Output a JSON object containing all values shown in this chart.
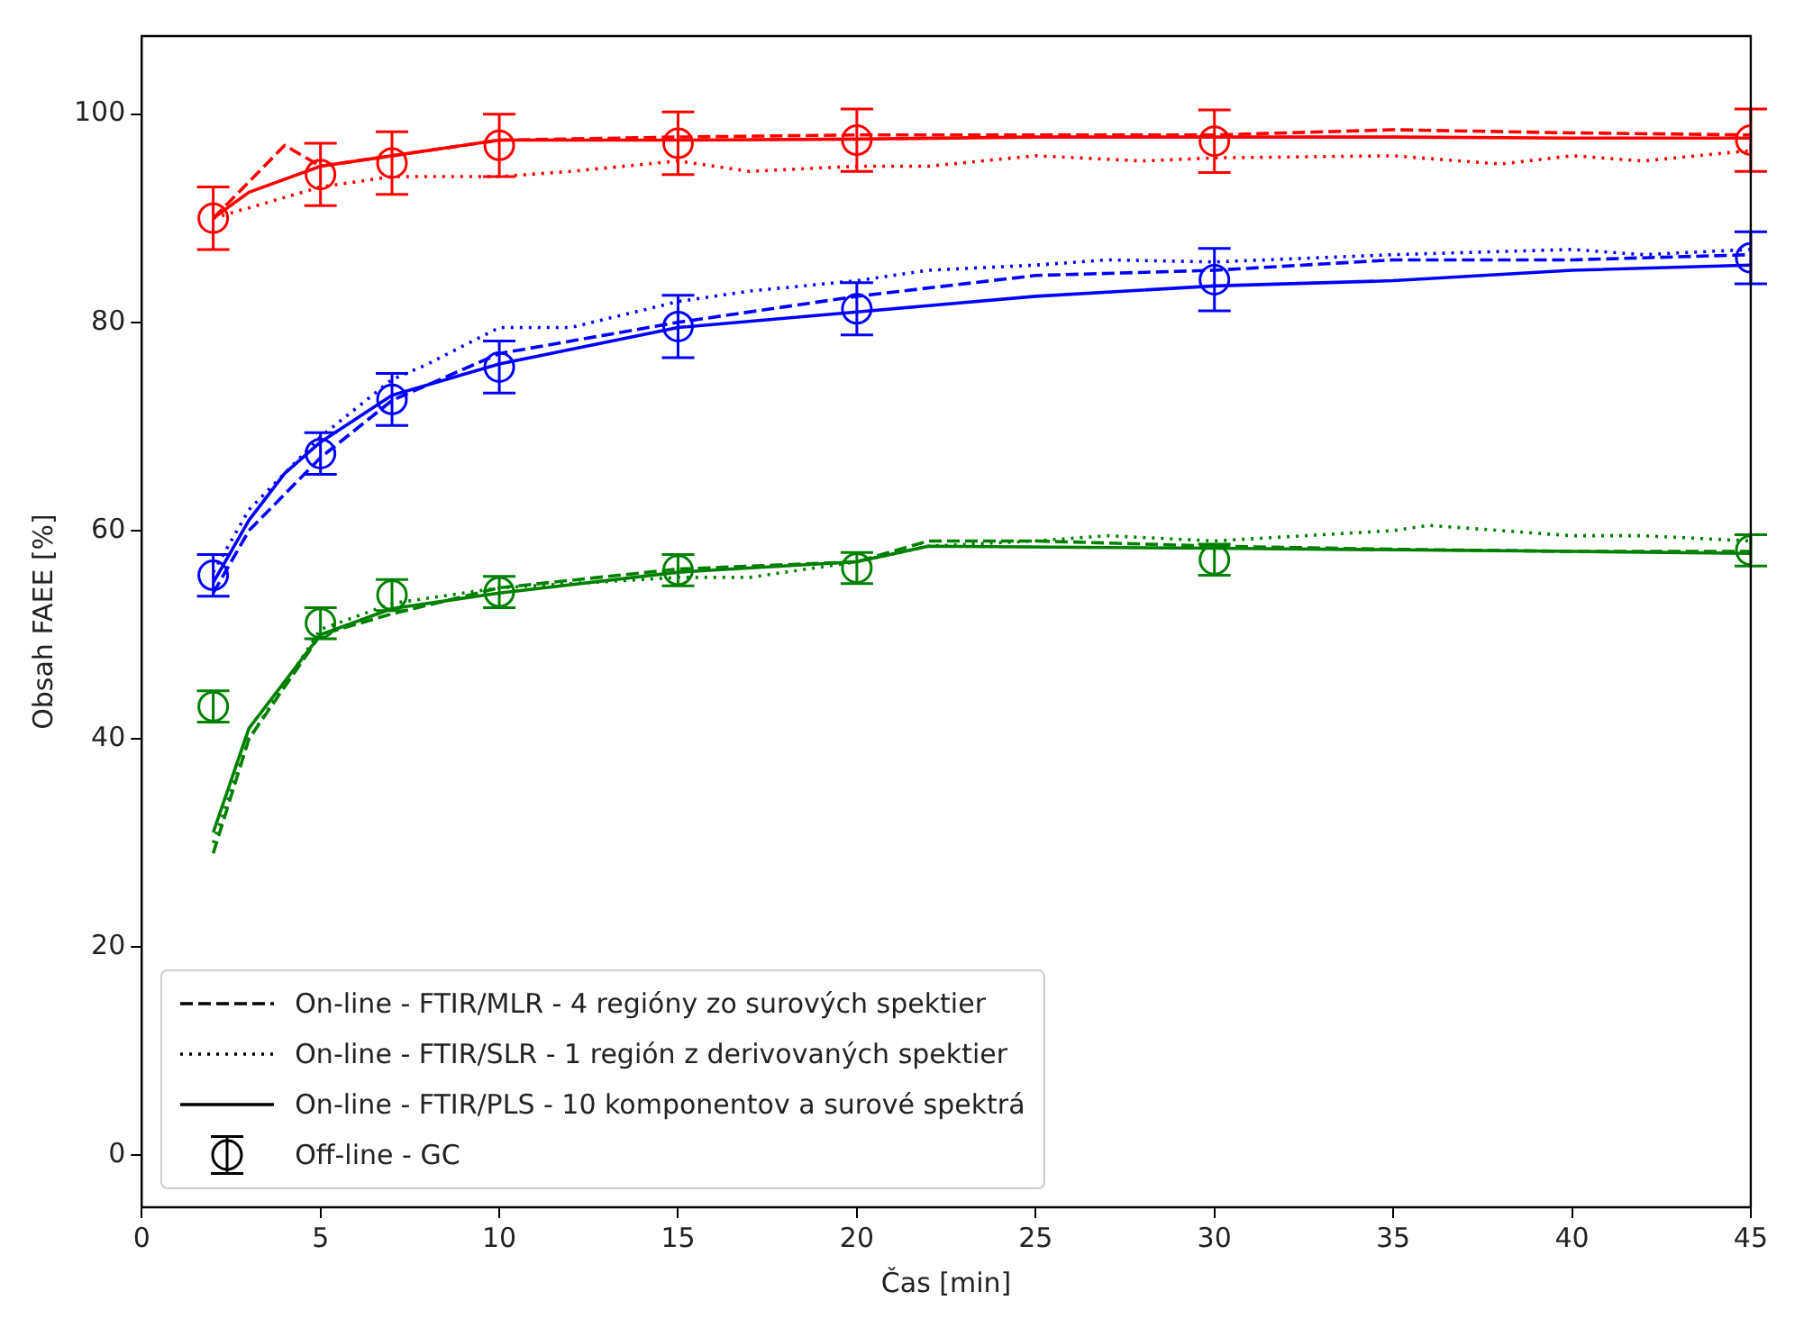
{
  "chart_data": {
    "type": "line",
    "xlabel": "Čas [min]",
    "ylabel": "Obsah FAEE [%]",
    "xlim": [
      0,
      45
    ],
    "ylim": [
      -5,
      107.5
    ],
    "xticks": [
      0,
      5,
      10,
      15,
      20,
      25,
      30,
      35,
      40,
      45
    ],
    "yticks": [
      0,
      20,
      40,
      60,
      80,
      100
    ],
    "grid": false,
    "legend": "lower left",
    "series": [
      {
        "color": "#ff0000",
        "line_style": "dashed",
        "x": [
          2,
          3,
          4,
          5,
          7,
          10,
          15,
          20,
          25,
          30,
          35,
          40,
          45
        ],
        "values": [
          90,
          93.5,
          97,
          95,
          96,
          97.5,
          97.8,
          98,
          98,
          98,
          98.5,
          98.2,
          98
        ]
      },
      {
        "color": "#ff0000",
        "line_style": "dotted",
        "x": [
          2,
          3,
          4,
          5,
          7,
          10,
          12,
          15,
          17,
          20,
          22,
          25,
          28,
          30,
          35,
          38,
          40,
          42,
          45
        ],
        "values": [
          90,
          91,
          92,
          93,
          94,
          94,
          94.5,
          95.5,
          94.5,
          95,
          95,
          96,
          95.5,
          95.8,
          96,
          95.2,
          96,
          95.5,
          96.5
        ]
      },
      {
        "color": "#ff0000",
        "line_style": "solid",
        "x": [
          2,
          3,
          5,
          7,
          10,
          15,
          20,
          25,
          30,
          35,
          40,
          45
        ],
        "values": [
          90,
          92.5,
          95,
          96,
          97.5,
          97.5,
          97.6,
          97.8,
          97.8,
          97.8,
          97.7,
          97.7
        ]
      },
      {
        "color": "#0000ff",
        "line_style": "dashed",
        "x": [
          2,
          3,
          5,
          7,
          10,
          15,
          20,
          25,
          30,
          35,
          40,
          45
        ],
        "values": [
          54,
          60,
          67,
          72.5,
          77,
          80,
          82.5,
          84.5,
          85,
          86,
          86,
          86.5
        ]
      },
      {
        "color": "#0000ff",
        "line_style": "dotted",
        "x": [
          2,
          3,
          5,
          7,
          8,
          10,
          12,
          15,
          17,
          20,
          22,
          25,
          27,
          30,
          35,
          40,
          42,
          45
        ],
        "values": [
          56,
          62,
          69,
          74.5,
          76,
          79.5,
          79.5,
          82,
          83,
          84,
          85,
          85.5,
          86,
          85.8,
          86.5,
          87,
          86.5,
          87
        ]
      },
      {
        "color": "#0000ff",
        "line_style": "solid",
        "x": [
          2,
          3,
          4,
          5,
          7,
          10,
          15,
          20,
          25,
          30,
          35,
          40,
          45
        ],
        "values": [
          55,
          61,
          65.5,
          68.5,
          73,
          76,
          79.5,
          81,
          82.5,
          83.5,
          84,
          85,
          85.5
        ]
      },
      {
        "color": "#008000",
        "line_style": "dashed",
        "x": [
          2,
          3,
          5,
          7,
          10,
          15,
          20,
          22,
          25,
          30,
          35,
          40,
          45
        ],
        "values": [
          29,
          40,
          50,
          52,
          54.5,
          56.3,
          57,
          59,
          59,
          58.5,
          58.2,
          58,
          58
        ]
      },
      {
        "color": "#008000",
        "line_style": "dotted",
        "x": [
          2,
          3,
          5,
          7,
          10,
          15,
          17,
          20,
          22,
          25,
          27,
          30,
          35,
          36,
          40,
          42,
          45
        ],
        "values": [
          30,
          40,
          50.5,
          53,
          54.5,
          55.5,
          55.5,
          57,
          58.5,
          59,
          59.5,
          59,
          60,
          60.5,
          59.5,
          59.5,
          59
        ]
      },
      {
        "color": "#008000",
        "line_style": "solid",
        "x": [
          2,
          3,
          5,
          7,
          10,
          15,
          20,
          22,
          30,
          40,
          45
        ],
        "values": [
          31,
          41,
          50,
          52.5,
          54,
          56,
          57,
          58.5,
          58.3,
          58,
          57.8
        ]
      },
      {
        "type": "scatter",
        "marker": "circle",
        "color": "#ff0000",
        "x": [
          2,
          5,
          7,
          10,
          15,
          20,
          30,
          45
        ],
        "values": [
          90,
          94.2,
          95.3,
          97,
          97.2,
          97.5,
          97.4,
          97.5
        ],
        "errors": [
          3,
          3,
          3,
          3,
          3,
          3,
          3,
          3
        ]
      },
      {
        "type": "scatter",
        "marker": "circle",
        "color": "#0000ff",
        "x": [
          2,
          5,
          7,
          10,
          15,
          20,
          30,
          45
        ],
        "values": [
          55.7,
          67.4,
          72.6,
          75.7,
          79.6,
          81.3,
          84.1,
          86.2
        ],
        "errors": [
          2,
          2,
          2.5,
          2.5,
          3,
          2.5,
          3,
          2.5
        ]
      },
      {
        "type": "scatter",
        "marker": "circle",
        "color": "#008000",
        "x": [
          2,
          5,
          7,
          10,
          15,
          20,
          30,
          45
        ],
        "values": [
          43.1,
          51.1,
          53.8,
          54.1,
          56.2,
          56.4,
          57.2,
          58.1
        ],
        "errors": [
          1.5,
          1.5,
          1.5,
          1.5,
          1.5,
          1.5,
          1.5,
          1.5
        ]
      },
      {
        "name": "On-line - FTIR/MLR - 4 regióny zo surových spektier",
        "color": "#000000",
        "line_style": "dashed"
      },
      {
        "name": "On-line - FTIR/SLR - 1 región z derivovaných spektier",
        "color": "#000000",
        "line_style": "dotted"
      },
      {
        "name": "On-line - FTIR/PLS - 10 komponentov a surové spektrá",
        "color": "#000000",
        "line_style": "solid"
      },
      {
        "name": "Off-line - GC",
        "type": "scatter",
        "marker": "circle",
        "color": "#000000"
      }
    ]
  }
}
